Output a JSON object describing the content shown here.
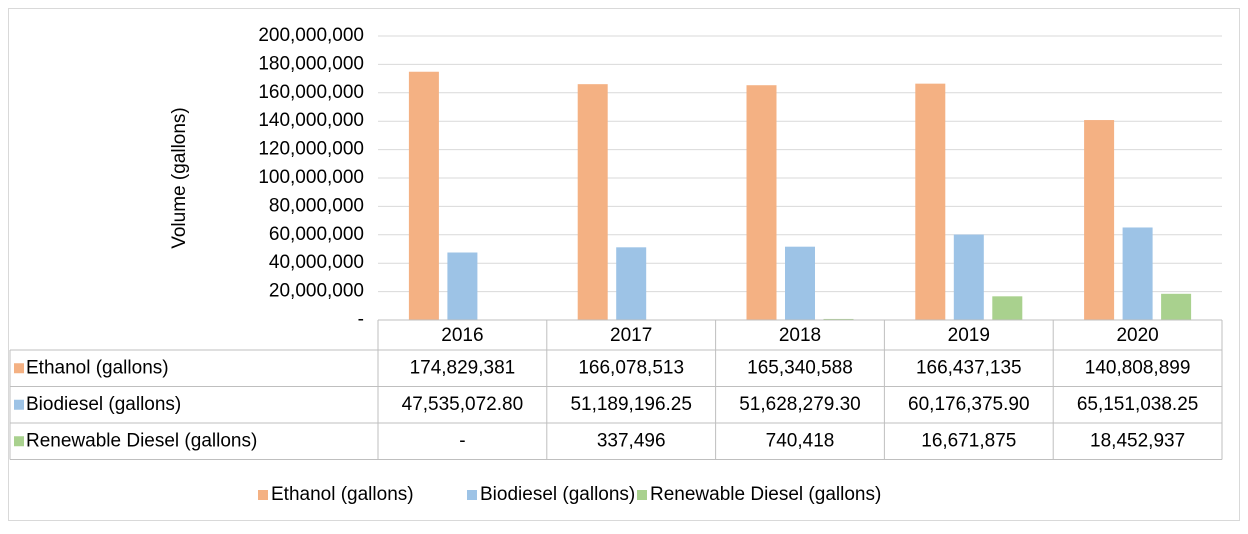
{
  "chart_data": {
    "type": "bar",
    "y_label": "Volume (gallons)",
    "categories": [
      "2016",
      "2017",
      "2018",
      "2019",
      "2020"
    ],
    "series": [
      {
        "name": "Ethanol (gallons)",
        "color": "#f4b183",
        "values": [
          174829381,
          166078513,
          165340588,
          166437135,
          140808899
        ],
        "value_labels": [
          "174,829,381",
          "166,078,513",
          "165,340,588",
          "166,437,135",
          "140,808,899"
        ]
      },
      {
        "name": "Biodiesel (gallons)",
        "color": "#9dc3e6",
        "values": [
          47535072.8,
          51189196.25,
          51628279.3,
          60176375.9,
          65151038.25
        ],
        "value_labels": [
          "47,535,072.80",
          "51,189,196.25",
          "51,628,279.30",
          "60,176,375.90",
          "65,151,038.25"
        ]
      },
      {
        "name": "Renewable Diesel (gallons)",
        "color": "#a9d18e",
        "values": [
          0,
          337496,
          740418,
          16671875,
          18452937
        ],
        "value_labels": [
          "-",
          "337,496",
          "740,418",
          "16,671,875",
          "18,452,937"
        ]
      }
    ],
    "ylim": [
      0,
      200000000
    ],
    "yticks": [
      {
        "value": 0,
        "label": "-"
      },
      {
        "value": 20000000,
        "label": "20,000,000"
      },
      {
        "value": 40000000,
        "label": "40,000,000"
      },
      {
        "value": 60000000,
        "label": "60,000,000"
      },
      {
        "value": 80000000,
        "label": "80,000,000"
      },
      {
        "value": 100000000,
        "label": "100,000,000"
      },
      {
        "value": 120000000,
        "label": "120,000,000"
      },
      {
        "value": 140000000,
        "label": "140,000,000"
      },
      {
        "value": 160000000,
        "label": "160,000,000"
      },
      {
        "value": 180000000,
        "label": "180,000,000"
      },
      {
        "value": 200000000,
        "label": "200,000,000"
      }
    ],
    "grid": true,
    "legend": "bottom"
  }
}
